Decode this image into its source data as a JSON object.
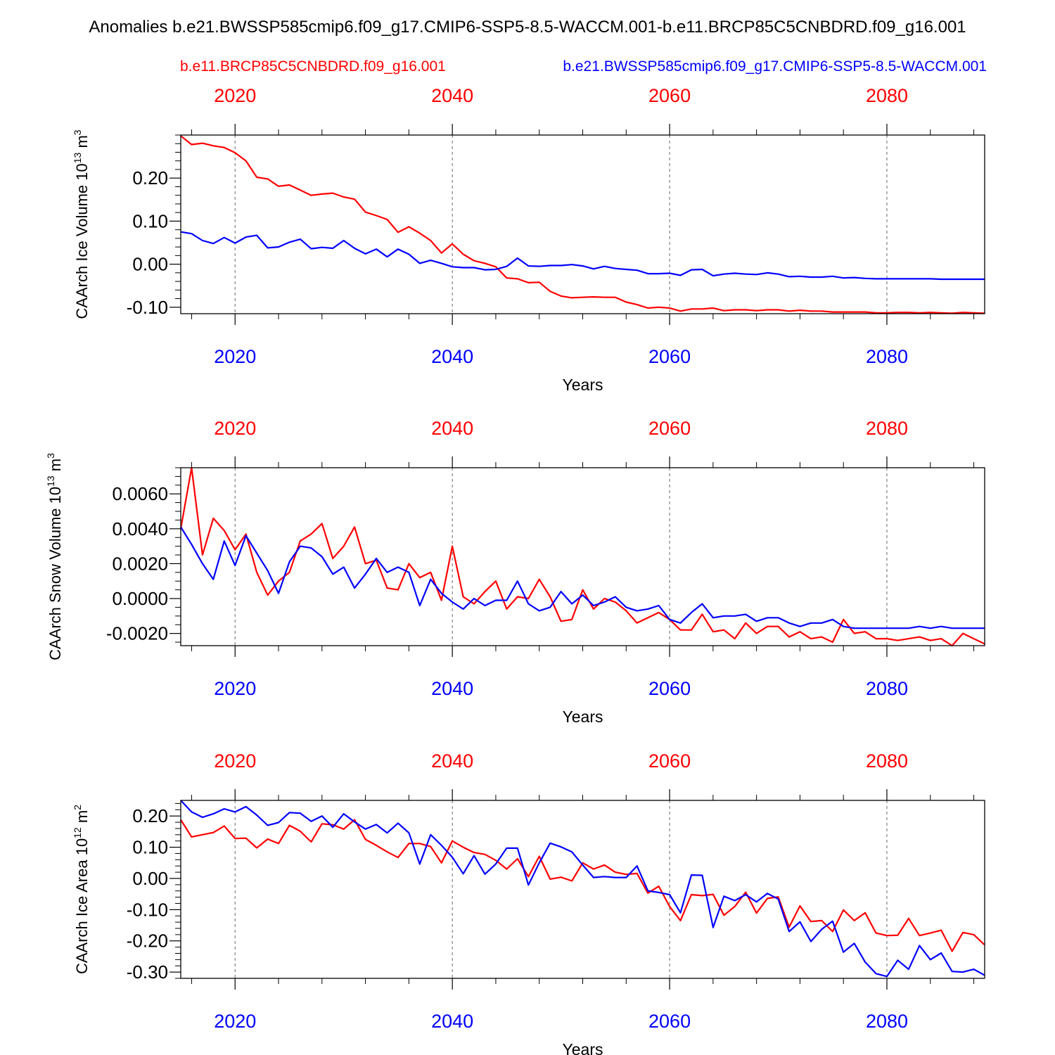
{
  "title": "Anomalies b.e21.BWSSP585cmip6.f09_g17.CMIP6-SSP5-8.5-WACCM.001-b.e11.BRCP85C5CNBDRD.f09_g16.001",
  "legend": {
    "red_label": "b.e11.BRCP85C5CNBDRD.f09_g16.001",
    "blue_label": "b.e21.BWSSP585cmip6.f09_g17.CMIP6-SSP5-8.5-WACCM.001"
  },
  "colors": {
    "red": "#ff0000",
    "blue": "#0000ff",
    "axis": "#000000",
    "grid": "#666666"
  },
  "chart_data": [
    {
      "type": "line",
      "ylabel": "CAArch Ice Volume 10",
      "ylabel_exp": "13",
      "ylabel_unit": " m",
      "ylabel_unit_exp": "3",
      "xlabel": "Years",
      "xlim": [
        2015,
        2089
      ],
      "ylim": [
        -0.115,
        0.3
      ],
      "xticks": [
        2020,
        2040,
        2060,
        2080
      ],
      "xtick_labels": [
        "2020",
        "2040",
        "2060",
        "2080"
      ],
      "yticks": [
        -0.1,
        0.0,
        0.1,
        0.2
      ],
      "ytick_labels": [
        "-0.10",
        "0.00",
        "0.10",
        "0.20"
      ],
      "yminor_step": 0.02,
      "x_start": 2015,
      "series": [
        {
          "name": "b.e11.BRCP85C5CNBDRD.f09_g16.001",
          "color": "#ff0000",
          "values": [
            0.298,
            0.278,
            0.281,
            0.275,
            0.271,
            0.259,
            0.24,
            0.202,
            0.198,
            0.181,
            0.184,
            0.172,
            0.16,
            0.163,
            0.165,
            0.156,
            0.151,
            0.121,
            0.113,
            0.104,
            0.074,
            0.087,
            0.072,
            0.055,
            0.026,
            0.047,
            0.023,
            0.008,
            0.002,
            -0.006,
            -0.032,
            -0.034,
            -0.043,
            -0.042,
            -0.063,
            -0.074,
            -0.078,
            -0.077,
            -0.076,
            -0.077,
            -0.077,
            -0.088,
            -0.094,
            -0.102,
            -0.1,
            -0.102,
            -0.109,
            -0.104,
            -0.104,
            -0.102,
            -0.108,
            -0.106,
            -0.106,
            -0.108,
            -0.106,
            -0.106,
            -0.109,
            -0.107,
            -0.109,
            -0.109,
            -0.111,
            -0.111,
            -0.111,
            -0.111,
            -0.113,
            -0.113,
            -0.112,
            -0.112,
            -0.113,
            -0.112,
            -0.113,
            -0.114,
            -0.112,
            -0.113,
            -0.114
          ]
        },
        {
          "name": "b.e21.BWSSP585cmip6.f09_g17.CMIP6-SSP5-8.5-WACCM.001",
          "color": "#0000ff",
          "values": [
            0.075,
            0.071,
            0.055,
            0.048,
            0.062,
            0.049,
            0.063,
            0.067,
            0.038,
            0.04,
            0.051,
            0.058,
            0.036,
            0.039,
            0.037,
            0.055,
            0.037,
            0.024,
            0.035,
            0.017,
            0.035,
            0.023,
            0.002,
            0.009,
            0.002,
            -0.006,
            -0.008,
            -0.008,
            -0.013,
            -0.012,
            -0.005,
            0.014,
            -0.004,
            -0.005,
            -0.003,
            -0.003,
            -0.001,
            -0.004,
            -0.011,
            -0.005,
            -0.01,
            -0.012,
            -0.014,
            -0.022,
            -0.022,
            -0.021,
            -0.026,
            -0.013,
            -0.012,
            -0.027,
            -0.023,
            -0.021,
            -0.023,
            -0.024,
            -0.02,
            -0.023,
            -0.029,
            -0.028,
            -0.03,
            -0.03,
            -0.028,
            -0.032,
            -0.031,
            -0.033,
            -0.034,
            -0.034,
            -0.034,
            -0.034,
            -0.034,
            -0.034,
            -0.035,
            -0.035,
            -0.035,
            -0.035,
            -0.035
          ]
        }
      ]
    },
    {
      "type": "line",
      "ylabel": "CAArch Snow Volume 10",
      "ylabel_exp": "13",
      "ylabel_unit": " m",
      "ylabel_unit_exp": "3",
      "xlabel": "Years",
      "xlim": [
        2015,
        2089
      ],
      "ylim": [
        -0.0027,
        0.0075
      ],
      "xticks": [
        2020,
        2040,
        2060,
        2080
      ],
      "xtick_labels": [
        "2020",
        "2040",
        "2060",
        "2080"
      ],
      "yticks": [
        -0.002,
        0.0,
        0.002,
        0.004,
        0.006
      ],
      "ytick_labels": [
        "-0.0020",
        "0.0000",
        "0.0020",
        "0.0040",
        "0.0060"
      ],
      "yminor_step": 0.0005,
      "x_start": 2015,
      "series": [
        {
          "name": "b.e11.BRCP85C5CNBDRD.f09_g16.001",
          "color": "#ff0000",
          "values": [
            0.004,
            0.0075,
            0.0025,
            0.0046,
            0.0039,
            0.0028,
            0.0037,
            0.0015,
            0.0002,
            0.001,
            0.0015,
            0.0033,
            0.0037,
            0.0043,
            0.0023,
            0.003,
            0.0041,
            0.002,
            0.0022,
            0.0006,
            0.0005,
            0.002,
            0.0012,
            0.0015,
            -0.0001,
            0.003,
            0.0001,
            -0.0003,
            0.0004,
            0.001,
            -0.0006,
            0.0001,
            0.0,
            0.0011,
            0.0001,
            -0.0013,
            -0.0012,
            0.0005,
            -0.0006,
            0.0,
            -0.0002,
            -0.0007,
            -0.0014,
            -0.0011,
            -0.0008,
            -0.0012,
            -0.0018,
            -0.0018,
            -0.0009,
            -0.0019,
            -0.0018,
            -0.0023,
            -0.0014,
            -0.002,
            -0.0016,
            -0.0016,
            -0.0022,
            -0.0019,
            -0.0023,
            -0.0022,
            -0.0025,
            -0.0012,
            -0.002,
            -0.0019,
            -0.0023,
            -0.0023,
            -0.0024,
            -0.0023,
            -0.0022,
            -0.0024,
            -0.0023,
            -0.0027,
            -0.002,
            -0.0023,
            -0.0026
          ]
        },
        {
          "name": "b.e21.BWSSP585cmip6.f09_g17.CMIP6-SSP5-8.5-WACCM.001",
          "color": "#0000ff",
          "values": [
            0.0041,
            0.0031,
            0.002,
            0.0011,
            0.0033,
            0.0019,
            0.0036,
            0.0026,
            0.0016,
            0.0003,
            0.0021,
            0.003,
            0.0029,
            0.0024,
            0.0014,
            0.0018,
            0.0006,
            0.0014,
            0.0023,
            0.0015,
            0.0018,
            0.0015,
            -0.0004,
            0.0011,
            0.0003,
            -0.0002,
            -0.0006,
            0.0,
            -0.0004,
            -0.0001,
            -0.0001,
            0.001,
            -0.0003,
            -0.0007,
            -0.0005,
            0.0004,
            -0.0003,
            0.0002,
            -0.0004,
            -0.0002,
            0.0001,
            -0.0005,
            -0.0007,
            -0.0006,
            -0.0004,
            -0.0012,
            -0.0014,
            -0.0008,
            -0.0003,
            -0.0011,
            -0.001,
            -0.001,
            -0.0009,
            -0.0013,
            -0.0011,
            -0.0011,
            -0.0014,
            -0.0016,
            -0.0014,
            -0.0014,
            -0.0012,
            -0.0016,
            -0.0017,
            -0.0017,
            -0.0017,
            -0.0017,
            -0.0017,
            -0.0017,
            -0.0016,
            -0.0017,
            -0.0016,
            -0.0017,
            -0.0017,
            -0.0017,
            -0.0017
          ]
        }
      ]
    },
    {
      "type": "line",
      "ylabel": "CAArch Ice Area 10",
      "ylabel_exp": "12",
      "ylabel_unit": " m",
      "ylabel_unit_exp": "2",
      "xlabel": "Years",
      "xlim": [
        2015,
        2089
      ],
      "ylim": [
        -0.32,
        0.25
      ],
      "xticks": [
        2020,
        2040,
        2060,
        2080
      ],
      "xtick_labels": [
        "2020",
        "2040",
        "2060",
        "2080"
      ],
      "yticks": [
        -0.3,
        -0.2,
        -0.1,
        0.0,
        0.1,
        0.2
      ],
      "ytick_labels": [
        "-0.30",
        "-0.20",
        "-0.10",
        "0.00",
        "0.10",
        "0.20"
      ],
      "yminor_step": 0.02,
      "x_start": 2015,
      "series": [
        {
          "name": "b.e11.BRCP85C5CNBDRD.f09_g16.001",
          "color": "#ff0000",
          "values": [
            0.188,
            0.133,
            0.14,
            0.147,
            0.168,
            0.128,
            0.129,
            0.098,
            0.126,
            0.112,
            0.17,
            0.151,
            0.117,
            0.175,
            0.172,
            0.158,
            0.188,
            0.125,
            0.106,
            0.085,
            0.067,
            0.112,
            0.112,
            0.102,
            0.05,
            0.12,
            0.1,
            0.083,
            0.077,
            0.058,
            0.03,
            0.063,
            0.006,
            0.071,
            -0.002,
            0.004,
            -0.008,
            0.05,
            0.03,
            0.043,
            0.02,
            0.013,
            0.016,
            -0.047,
            -0.025,
            -0.09,
            -0.135,
            -0.052,
            -0.055,
            -0.051,
            -0.118,
            -0.09,
            -0.044,
            -0.111,
            -0.064,
            -0.059,
            -0.156,
            -0.088,
            -0.138,
            -0.135,
            -0.17,
            -0.101,
            -0.135,
            -0.11,
            -0.175,
            -0.183,
            -0.182,
            -0.128,
            -0.183,
            -0.175,
            -0.166,
            -0.233,
            -0.173,
            -0.18,
            -0.213
          ]
        },
        {
          "name": "b.e21.BWSSP585cmip6.f09_g17.CMIP6-SSP5-8.5-WACCM.001",
          "color": "#0000ff",
          "values": [
            0.25,
            0.213,
            0.196,
            0.207,
            0.223,
            0.213,
            0.23,
            0.203,
            0.17,
            0.179,
            0.211,
            0.209,
            0.183,
            0.2,
            0.164,
            0.207,
            0.181,
            0.158,
            0.173,
            0.146,
            0.177,
            0.146,
            0.046,
            0.14,
            0.106,
            0.068,
            0.015,
            0.073,
            0.014,
            0.046,
            0.097,
            0.097,
            -0.021,
            0.05,
            0.113,
            0.101,
            0.085,
            0.043,
            0.003,
            0.006,
            0.003,
            0.003,
            0.04,
            -0.04,
            -0.045,
            -0.052,
            -0.11,
            0.011,
            0.01,
            -0.157,
            -0.057,
            -0.071,
            -0.052,
            -0.075,
            -0.048,
            -0.066,
            -0.17,
            -0.139,
            -0.202,
            -0.163,
            -0.137,
            -0.236,
            -0.208,
            -0.268,
            -0.305,
            -0.314,
            -0.262,
            -0.291,
            -0.215,
            -0.26,
            -0.239,
            -0.298,
            -0.3,
            -0.291,
            -0.31
          ]
        }
      ]
    }
  ]
}
